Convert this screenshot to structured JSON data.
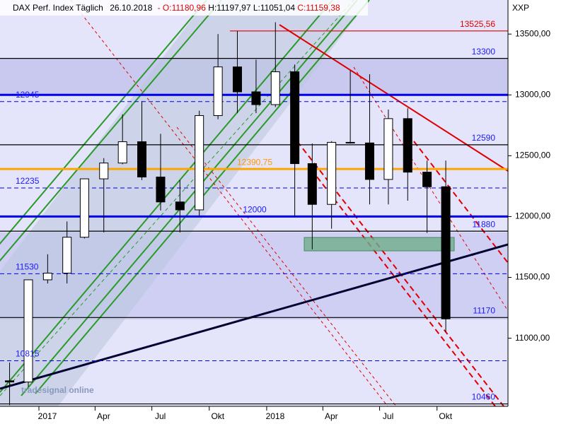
{
  "chart_data": {
    "type": "candlestick",
    "header": {
      "symbol": "DAX Perf. Index Täglich",
      "date": "26.10.2018",
      "open": "- O:11180,96",
      "high": "H:11197,97",
      "low": "L:11051,04",
      "close": "C:11159,38"
    },
    "currency": "XXP",
    "watermark": "tradesignal online",
    "x": [
      "2016-11",
      "2016-12",
      "2017-01",
      "2017-02",
      "2017-03",
      "2017-04",
      "2017-05",
      "2017-06",
      "2017-07",
      "2017-08",
      "2017-09",
      "2017-10",
      "2017-11",
      "2017-12",
      "2018-01",
      "2018-02",
      "2018-03",
      "2018-04",
      "2018-05",
      "2018-06",
      "2018-07",
      "2018-08",
      "2018-09",
      "2018-10"
    ],
    "open": [
      10650,
      10640,
      11480,
      11535,
      11830,
      12310,
      12440,
      12615,
      12325,
      12120,
      12055,
      12830,
      13230,
      13025,
      12920,
      13190,
      12435,
      12100,
      12610,
      12605,
      12305,
      12805,
      12365,
      12245
    ],
    "high": [
      10800,
      11480,
      11690,
      11960,
      12310,
      12480,
      12840,
      12950,
      12680,
      12300,
      12870,
      13500,
      13525,
      13290,
      13597,
      13250,
      12600,
      12620,
      13200,
      13170,
      12880,
      12890,
      12460,
      12460
    ],
    "low": [
      10450,
      10600,
      11450,
      11450,
      11820,
      11870,
      12430,
      12300,
      12050,
      11870,
      12000,
      12800,
      12850,
      12850,
      12900,
      12000,
      11730,
      11900,
      12600,
      12100,
      12100,
      12130,
      11865,
      11051
    ],
    "close": [
      10640,
      11480,
      11535,
      11830,
      12310,
      12440,
      12615,
      12325,
      12120,
      12055,
      12830,
      13230,
      13025,
      12920,
      13190,
      12435,
      12100,
      12610,
      12605,
      12305,
      12805,
      12365,
      12245,
      11159
    ],
    "up_color": "#ffffff",
    "down_color": "#000000",
    "ylim": [
      10440,
      13780
    ],
    "yticks": [
      {
        "value": 11000,
        "label": "11000,00"
      },
      {
        "value": 11500,
        "label": "11500,00"
      },
      {
        "value": 12000,
        "label": "12000,00"
      },
      {
        "value": 12500,
        "label": "12500,00"
      },
      {
        "value": 13000,
        "label": "13000,00"
      },
      {
        "value": 13500,
        "label": "13500,00"
      }
    ],
    "xticks": [
      {
        "value": "2017-01",
        "label": "2017"
      },
      {
        "value": "2017-04",
        "label": "Apr"
      },
      {
        "value": "2017-07",
        "label": "Jul"
      },
      {
        "value": "2017-10",
        "label": "Okt"
      },
      {
        "value": "2018-01",
        "label": "2018"
      },
      {
        "value": "2018-04",
        "label": "Apr"
      },
      {
        "value": "2018-07",
        "label": "Jul"
      },
      {
        "value": "2018-10",
        "label": "Okt"
      }
    ],
    "levels": [
      {
        "value": 13525.56,
        "label": "13525,56",
        "color": "#e00000",
        "style": "solid",
        "label_side": "right",
        "label_color": "#e00000"
      },
      {
        "value": 13300,
        "color": "#000000",
        "style": "solid",
        "label_side": "right",
        "label_color": "#1a1aff"
      },
      {
        "value": 13000,
        "color": "#0000ee",
        "style": "thick",
        "label_side": "none",
        "label_color": "#1a1aff"
      },
      {
        "value": 12945,
        "color": "#0000ee",
        "style": "dashed",
        "label_side": "left",
        "label_color": "#1a1aff"
      },
      {
        "value": 12590,
        "color": "#000000",
        "style": "solid",
        "label_side": "right",
        "label_color": "#1a1aff"
      },
      {
        "value": 12390.75,
        "label": "12390,75",
        "color": "#ffa500",
        "style": "thick",
        "label_side": "center",
        "label_color": "#ff9900"
      },
      {
        "value": 12235,
        "color": "#0000ee",
        "style": "dashed",
        "label_side": "left",
        "label_color": "#1a1aff"
      },
      {
        "value": 12000,
        "color": "#0000ee",
        "style": "thick",
        "label_side": "center",
        "label_color": "#1a1aff"
      },
      {
        "value": 11880,
        "color": "#000000",
        "style": "solid",
        "label_side": "right",
        "label_color": "#1a1aff"
      },
      {
        "value": 11530,
        "color": "#0000ee",
        "style": "dashed",
        "label_side": "left",
        "label_color": "#1a1aff"
      },
      {
        "value": 11170,
        "color": "#000000",
        "style": "solid",
        "label_side": "right",
        "label_color": "#1a1aff"
      },
      {
        "value": 10815,
        "color": "#0000ee",
        "style": "dashed",
        "label_side": "left",
        "label_color": "#1a1aff"
      },
      {
        "value": 10460,
        "color": "#000000",
        "style": "solid",
        "label_side": "right",
        "label_color": "#1a1aff"
      }
    ]
  }
}
